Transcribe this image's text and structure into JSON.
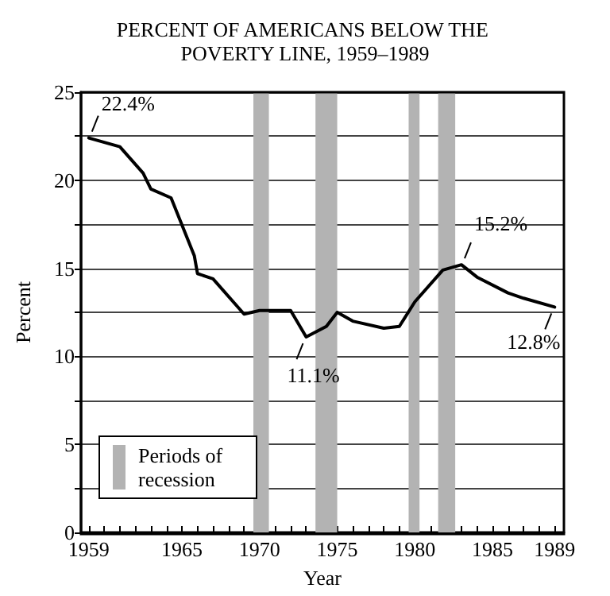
{
  "chart_data": {
    "type": "line",
    "title": "PERCENT OF AMERICANS BELOW THE POVERTY LINE, 1959–1989",
    "xlabel": "Year",
    "ylabel": "Percent",
    "x": [
      1959,
      1961,
      1962.5,
      1963,
      1964.3,
      1965.8,
      1966,
      1967,
      1969,
      1970,
      1972,
      1973,
      1974.3,
      1975,
      1976,
      1978,
      1979,
      1980,
      1981.8,
      1983,
      1984,
      1986,
      1987,
      1989
    ],
    "series": [
      {
        "color": "#000000",
        "values": [
          22.4,
          21.9,
          20.4,
          19.5,
          19.0,
          15.7,
          14.7,
          14.4,
          12.4,
          12.6,
          12.6,
          11.1,
          11.7,
          12.5,
          12.0,
          11.6,
          11.7,
          13.1,
          14.9,
          15.2,
          14.5,
          13.6,
          13.3,
          12.8
        ]
      }
    ],
    "xlim": [
      1958.5,
      1989.6
    ],
    "xticks": [
      1959,
      {
        "value": 1960,
        "label": null
      },
      {
        "value": 1961,
        "label": null
      },
      {
        "value": 1962,
        "label": null
      },
      {
        "value": 1963,
        "label": null
      },
      {
        "value": 1964,
        "label": null
      },
      1965,
      {
        "value": 1966,
        "label": null
      },
      {
        "value": 1967,
        "label": null
      },
      {
        "value": 1968,
        "label": null
      },
      {
        "value": 1969,
        "label": null
      },
      1970,
      {
        "value": 1971,
        "label": null
      },
      {
        "value": 1972,
        "label": null
      },
      {
        "value": 1973,
        "label": null
      },
      {
        "value": 1974,
        "label": null
      },
      1975,
      {
        "value": 1976,
        "label": null
      },
      {
        "value": 1977,
        "label": null
      },
      {
        "value": 1978,
        "label": null
      },
      {
        "value": 1979,
        "label": null
      },
      1980,
      {
        "value": 1981,
        "label": null
      },
      {
        "value": 1982,
        "label": null
      },
      {
        "value": 1983,
        "label": null
      },
      {
        "value": 1984,
        "label": null
      },
      1985,
      {
        "value": 1986,
        "label": null
      },
      {
        "value": 1987,
        "label": null
      },
      {
        "value": 1988,
        "label": null
      },
      1989
    ],
    "ylim": [
      0,
      25
    ],
    "yticks": [
      0,
      {
        "value": 2.5,
        "label": null
      },
      5,
      {
        "value": 7.5,
        "label": null
      },
      10,
      {
        "value": 12.5,
        "label": null
      },
      15,
      {
        "value": 17.5,
        "label": null
      },
      20,
      {
        "value": 22.5,
        "label": null
      },
      25
    ],
    "grid": "y",
    "marker": "none",
    "line_style": "solid",
    "bands": [
      {
        "axis": "x",
        "from": 1969.6,
        "to": 1970.6,
        "color": "#b3b3b3"
      },
      {
        "axis": "x",
        "from": 1973.6,
        "to": 1975.0,
        "color": "#b3b3b3"
      },
      {
        "axis": "x",
        "from": 1979.6,
        "to": 1980.3,
        "color": "#b3b3b3"
      },
      {
        "axis": "x",
        "from": 1981.5,
        "to": 1982.6,
        "color": "#b3b3b3"
      }
    ],
    "legend_title": "Periods of recession",
    "annotations": [
      {
        "text": "22.4%",
        "x": 1959,
        "y": 22.4
      },
      {
        "text": "11.1%",
        "x": 1973,
        "y": 11.1
      },
      {
        "text": "15.2%",
        "x": 1983,
        "y": 15.2
      },
      {
        "text": "12.8%",
        "x": 1989,
        "y": 12.8
      }
    ]
  }
}
